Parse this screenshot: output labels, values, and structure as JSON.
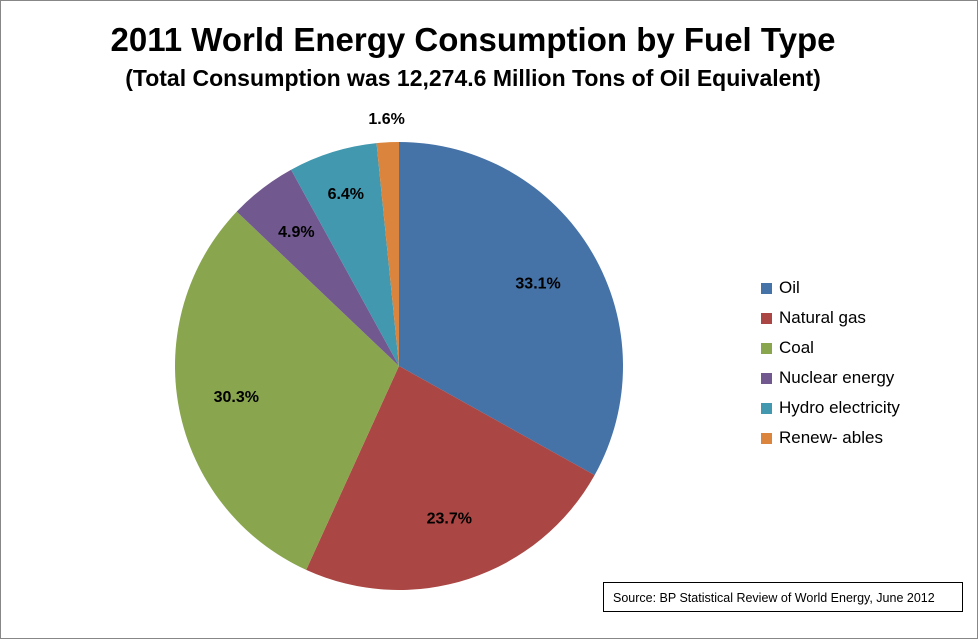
{
  "chart_data": {
    "type": "pie",
    "title": "2011 World Energy Consumption by Fuel Type",
    "subtitle": "(Total Consumption was 12,274.6 Million Tons of Oil Equivalent)",
    "categories": [
      "Oil",
      "Natural gas",
      "Coal",
      "Nuclear energy",
      "Hydro electricity",
      "Renew- ables"
    ],
    "values": [
      33.1,
      23.7,
      30.3,
      4.9,
      6.4,
      1.6
    ],
    "data_labels": [
      "33.1%",
      "23.7%",
      "30.3%",
      "4.9%",
      "6.4%",
      "1.6%"
    ],
    "colors": [
      "#4572A7",
      "#AA4643",
      "#89A54E",
      "#71588F",
      "#4198AF",
      "#DB843D"
    ],
    "legend_position": "right",
    "source_note": "Source:  BP Statistical Review of World Energy, June 2012"
  }
}
